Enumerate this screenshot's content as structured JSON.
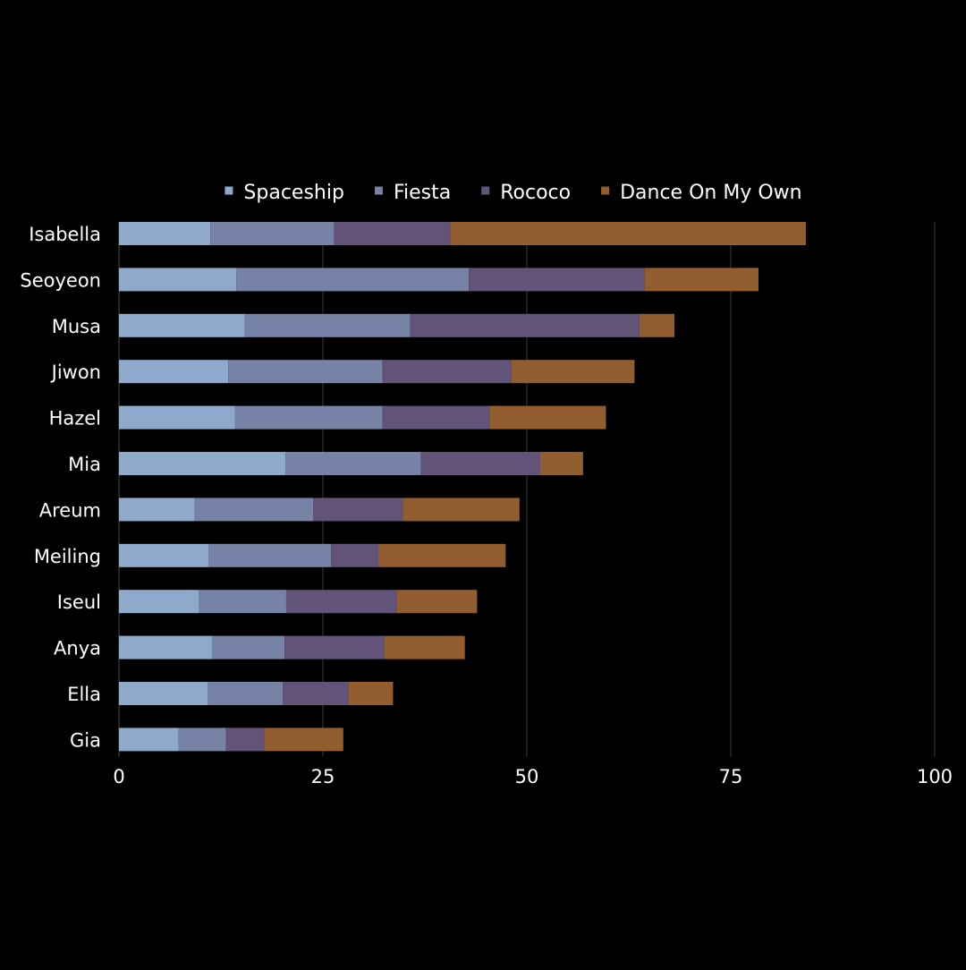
{
  "chart_data": {
    "type": "bar",
    "orientation": "horizontal",
    "stacked": true,
    "title": "",
    "xlabel": "",
    "ylabel": "",
    "xlim": [
      0,
      100
    ],
    "x_ticks": [
      0,
      25,
      50,
      75,
      100
    ],
    "grid": true,
    "legend_position": "top",
    "background": "#000000",
    "categories": [
      "Isabella",
      "Seoyeon",
      "Musa",
      "Jiwon",
      "Hazel",
      "Mia",
      "Areum",
      "Meiling",
      "Iseul",
      "Anya",
      "Ella",
      "Gia"
    ],
    "series": [
      {
        "name": "Spaceship",
        "color": "#8ea9cb",
        "values": [
          11.2,
          14.4,
          15.4,
          13.4,
          14.2,
          20.4,
          9.3,
          11.0,
          9.8,
          11.4,
          10.9,
          7.3
        ]
      },
      {
        "name": "Fiesta",
        "color": "#7682a6",
        "values": [
          15.2,
          28.5,
          20.3,
          18.9,
          18.1,
          16.6,
          14.5,
          15.0,
          10.7,
          8.9,
          9.2,
          5.8
        ]
      },
      {
        "name": "Rococo",
        "color": "#625478",
        "values": [
          14.2,
          21.5,
          28.1,
          15.8,
          13.2,
          14.7,
          11.0,
          5.8,
          13.6,
          12.2,
          8.0,
          4.7
        ]
      },
      {
        "name": "Dance On My Own",
        "color": "#925d2f",
        "values": [
          43.6,
          14.0,
          4.3,
          15.1,
          14.2,
          5.2,
          14.3,
          15.6,
          9.8,
          9.9,
          5.5,
          9.7
        ]
      }
    ]
  }
}
